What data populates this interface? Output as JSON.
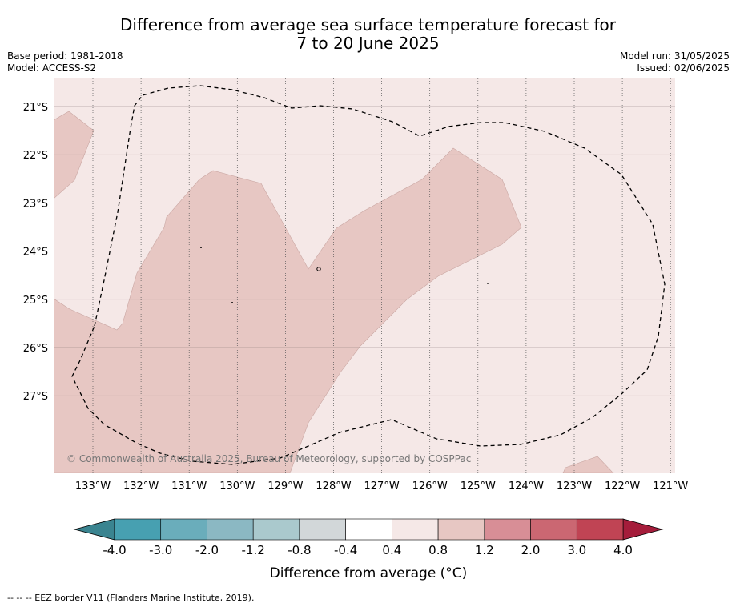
{
  "title": {
    "line1": "Difference from average sea surface temperature forecast for",
    "line2": "7 to 20 June 2025"
  },
  "info_left": {
    "base_period": "Base period: 1981-2018",
    "model": "Model: ACCESS-S2"
  },
  "info_right": {
    "model_run": "Model run: 31/05/2025",
    "issued": "Issued: 02/06/2025"
  },
  "map": {
    "lat_labels": [
      "21°S",
      "22°S",
      "23°S",
      "24°S",
      "25°S",
      "26°S",
      "27°S"
    ],
    "lon_labels": [
      "133°W",
      "132°W",
      "131°W",
      "130°W",
      "129°W",
      "128°W",
      "127°W",
      "126°W",
      "125°W",
      "124°W",
      "123°W",
      "122°W",
      "121°W"
    ],
    "copyright": "© Commonwealth of Australia 2025, Bureau of Meteorology, supported by COSPPac",
    "anomaly_classes": [
      {
        "range": "0.4 to 0.8",
        "color": "#f5e8e7"
      },
      {
        "range": "0.8 to 1.2",
        "color": "#e7c7c3"
      }
    ]
  },
  "colorbar": {
    "tick_labels": [
      "-4.0",
      "-3.0",
      "-2.0",
      "-1.2",
      "-0.8",
      "-0.4",
      "0.4",
      "0.8",
      "1.2",
      "2.0",
      "3.0",
      "4.0"
    ],
    "colors": [
      "#47a0b1",
      "#6aadbb",
      "#8bb8c3",
      "#aac9cd",
      "#d2d7d9",
      "#ffffff",
      "#f5e8e7",
      "#e7c7c3",
      "#d88e96",
      "#cb6772",
      "#c04454"
    ],
    "under_color": "#3a8490",
    "over_color": "#a51d3b",
    "label": "Difference from average (°C)"
  },
  "footnote": "-- -- -- EEZ border V11 (Flanders Marine Institute, 2019)."
}
